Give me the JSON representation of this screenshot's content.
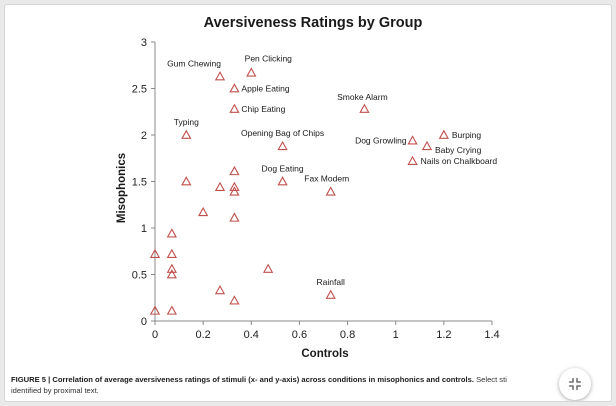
{
  "chart_data": {
    "type": "scatter",
    "title": "Aversiveness Ratings by Group",
    "xlabel": "Controls",
    "ylabel": "Misophonics",
    "xlim": [
      0,
      1.4
    ],
    "ylim": [
      0,
      3
    ],
    "xticks": [
      0,
      0.2,
      0.4,
      0.6,
      0.8,
      1,
      1.2,
      1.4
    ],
    "yticks": [
      0,
      0.5,
      1,
      1.5,
      2,
      2.5,
      3
    ],
    "xtick_labels": [
      "0",
      "0.2",
      "0.4",
      "0.6",
      "0.8",
      "1",
      "1.2",
      "1.4"
    ],
    "ytick_labels": [
      "0",
      "0.5",
      "1",
      "1.5",
      "2",
      "2.5",
      "3"
    ],
    "grid": false,
    "marker": "open-triangle",
    "marker_color": "#c0504d",
    "points": [
      {
        "x": 0.27,
        "y": 2.63,
        "label": "Gum Chewing"
      },
      {
        "x": 0.4,
        "y": 2.67,
        "label": "Pen Clicking"
      },
      {
        "x": 0.33,
        "y": 2.5,
        "label": "Apple Eating"
      },
      {
        "x": 0.33,
        "y": 2.28,
        "label": "Chip Eating"
      },
      {
        "x": 0.87,
        "y": 2.28,
        "label": "Smoke Alarm"
      },
      {
        "x": 0.13,
        "y": 2.0,
        "label": "Typing"
      },
      {
        "x": 0.53,
        "y": 1.88,
        "label": "Opening Bag of Chips"
      },
      {
        "x": 1.07,
        "y": 1.94,
        "label": "Dog Growling"
      },
      {
        "x": 1.2,
        "y": 2.0,
        "label": "Burping"
      },
      {
        "x": 1.13,
        "y": 1.88,
        "label": "Baby Crying"
      },
      {
        "x": 1.07,
        "y": 1.72,
        "label": "Nails on Chalkboard"
      },
      {
        "x": 0.53,
        "y": 1.5,
        "label": "Dog Eating"
      },
      {
        "x": 0.73,
        "y": 1.39,
        "label": "Fax Modem"
      },
      {
        "x": 0.73,
        "y": 0.28,
        "label": "Rainfall"
      },
      {
        "x": 0.33,
        "y": 1.61,
        "label": ""
      },
      {
        "x": 0.13,
        "y": 1.5,
        "label": ""
      },
      {
        "x": 0.27,
        "y": 1.44,
        "label": ""
      },
      {
        "x": 0.33,
        "y": 1.44,
        "label": ""
      },
      {
        "x": 0.33,
        "y": 1.39,
        "label": ""
      },
      {
        "x": 0.2,
        "y": 1.17,
        "label": ""
      },
      {
        "x": 0.33,
        "y": 1.11,
        "label": ""
      },
      {
        "x": 0.07,
        "y": 0.94,
        "label": ""
      },
      {
        "x": 0.0,
        "y": 0.72,
        "label": ""
      },
      {
        "x": 0.07,
        "y": 0.72,
        "label": ""
      },
      {
        "x": 0.07,
        "y": 0.56,
        "label": ""
      },
      {
        "x": 0.07,
        "y": 0.5,
        "label": ""
      },
      {
        "x": 0.47,
        "y": 0.56,
        "label": ""
      },
      {
        "x": 0.27,
        "y": 0.33,
        "label": ""
      },
      {
        "x": 0.33,
        "y": 0.22,
        "label": ""
      },
      {
        "x": 0.0,
        "y": 0.11,
        "label": ""
      },
      {
        "x": 0.07,
        "y": 0.11,
        "label": ""
      }
    ]
  },
  "caption": {
    "figure_number": "FIGURE 5 |",
    "lead": "Correlation of average aversiveness ratings of stimuli (x- and y-axis) across conditions in misophonics and controls.",
    "rest_line1": "Select sti",
    "rest_line2": "identified by proximal text."
  },
  "controls": {
    "collapse_icon": "collapse-arrows-icon"
  }
}
